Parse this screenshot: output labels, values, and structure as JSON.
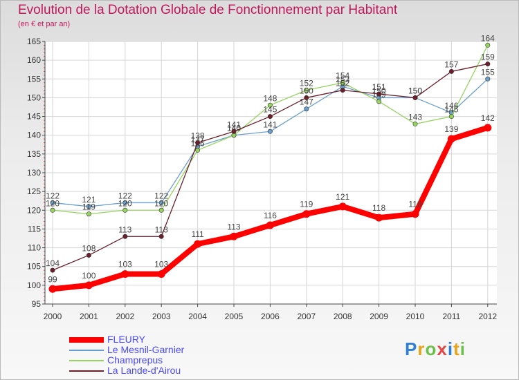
{
  "chart_data": {
    "type": "line",
    "title": "Evolution de la Dotation Globale de Fonctionnement par Habitant",
    "subtitle": "(en € et par an)",
    "categories": [
      "2000",
      "2001",
      "2002",
      "2003",
      "2004",
      "2005",
      "2006",
      "2007",
      "2008",
      "2009",
      "2010",
      "2011",
      "2012"
    ],
    "ylim": [
      95,
      165
    ],
    "yticks": [
      95,
      100,
      105,
      110,
      115,
      120,
      125,
      130,
      135,
      140,
      145,
      150,
      155,
      160,
      165
    ],
    "grid": true,
    "series": [
      {
        "name": "FLEURY",
        "color": "#ff0000",
        "values": [
          99,
          100,
          103,
          103,
          111,
          113,
          116,
          119,
          121,
          118,
          119,
          139,
          142
        ]
      },
      {
        "name": "Le Mesnil-Garnier",
        "color": "#6a9fcc",
        "values": [
          122,
          121,
          122,
          122,
          137,
          140,
          141,
          147,
          153,
          150,
          150,
          146,
          155
        ]
      },
      {
        "name": "Champrepus",
        "color": "#96d35f",
        "values": [
          120,
          119,
          120,
          120,
          136,
          140,
          148,
          152,
          154,
          149,
          143,
          145,
          164
        ]
      },
      {
        "name": "La Lande-d'Airou",
        "color": "#6b1f2a",
        "values": [
          104,
          108,
          113,
          113,
          138,
          141,
          145,
          150,
          152,
          151,
          150,
          157,
          159
        ]
      }
    ]
  },
  "logo": {
    "text": "Proxiti",
    "letters": [
      "P",
      "r",
      "o",
      "x",
      "i",
      "t",
      "i"
    ],
    "colors": [
      "#2f7fd8",
      "#e8a317",
      "#6cc04a",
      "#e84545",
      "#2f7fd8",
      "#e8a317",
      "#6cc04a"
    ]
  }
}
